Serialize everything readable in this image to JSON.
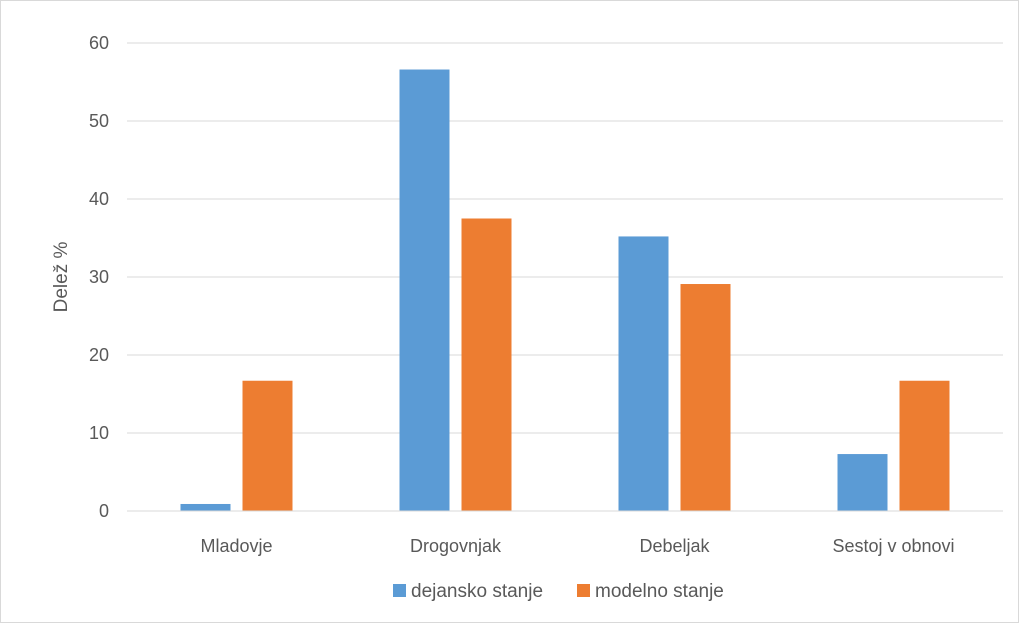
{
  "chart_data": {
    "type": "bar",
    "categories": [
      "Mladovje",
      "Drogovnjak",
      "Debeljak",
      "Sestoj v obnovi"
    ],
    "series": [
      {
        "name": "dejansko stanje",
        "values": [
          0.9,
          56.6,
          35.2,
          7.3
        ],
        "color": "#5b9bd5"
      },
      {
        "name": "modelno stanje",
        "values": [
          16.7,
          37.5,
          29.1,
          16.7
        ],
        "color": "#ed7d31"
      }
    ],
    "title": "",
    "xlabel": "",
    "ylabel": "Delež %",
    "ylim": [
      0,
      60
    ],
    "yticks": [
      "0",
      "10",
      "20",
      "30",
      "40",
      "50",
      "60"
    ],
    "grid": true,
    "legend_position": "bottom"
  }
}
